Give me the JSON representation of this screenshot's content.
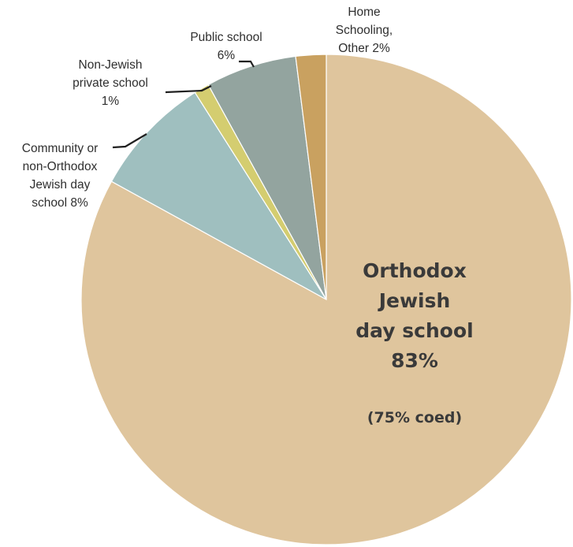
{
  "chart_data": {
    "type": "pie",
    "title": "",
    "slices": [
      {
        "label_lines": [
          "Orthodox",
          "Jewish",
          "day school",
          "83%"
        ],
        "value": 83,
        "color": "#dfc59d",
        "note": "(75% coed)"
      },
      {
        "label_lines": [
          "Community or",
          "non-Orthodox",
          "Jewish day",
          "school 8%"
        ],
        "value": 8,
        "color": "#9fbfbf"
      },
      {
        "label_lines": [
          "Non-Jewish",
          "private school",
          "1%"
        ],
        "value": 1,
        "color": "#d4cd70"
      },
      {
        "label_lines": [
          "Public school",
          "6%"
        ],
        "value": 6,
        "color": "#93a49f"
      },
      {
        "label_lines": [
          "Home",
          "Schooling,",
          "Other 2%"
        ],
        "value": 2,
        "color": "#c9a160"
      }
    ]
  }
}
